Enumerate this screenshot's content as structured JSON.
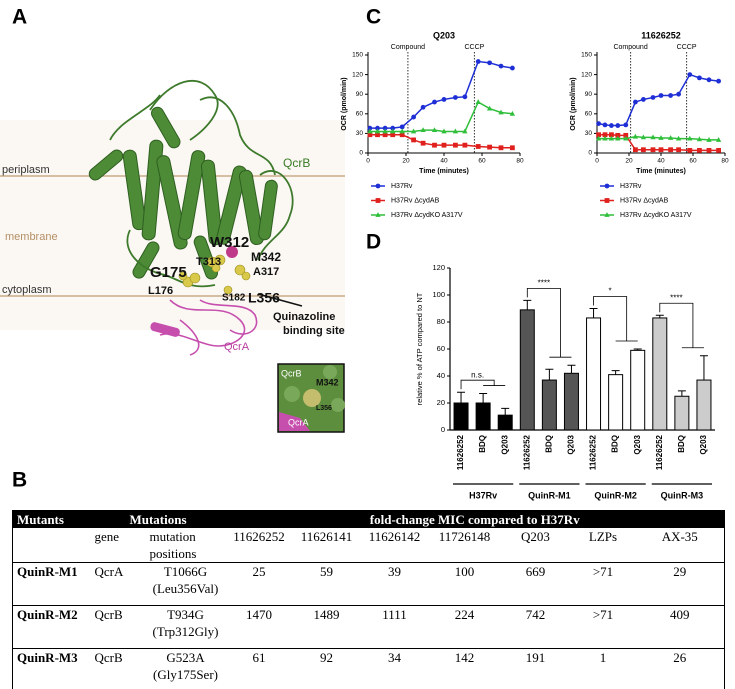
{
  "panel_labels": [
    "A",
    "B",
    "C",
    "D"
  ],
  "structure": {
    "regions": [
      "periplasm",
      "membrane",
      "cytoplasm"
    ],
    "chains": [
      "QcrB",
      "QcrA"
    ],
    "residues": [
      "W312",
      "M342",
      "T313",
      "A317",
      "G175",
      "L176",
      "S182",
      "L356"
    ],
    "site_label": [
      "Quinazoline",
      "binding site"
    ],
    "inset_labels": [
      "QcrB",
      "M342",
      "L356",
      "QcrA"
    ]
  },
  "table": {
    "headers": [
      "Mutants",
      "Mutations",
      "fold-change MIC compared to H37Rv"
    ],
    "subheaders": [
      "gene",
      "mutation positions",
      "11626252",
      "11626141",
      "11626142",
      "11726148",
      "Q203",
      "LZPs",
      "AX-35"
    ],
    "rows": [
      [
        "QuinR-M1",
        "QcrA",
        [
          "T1066G",
          "(Leu356Val)"
        ],
        25,
        59,
        39,
        100,
        669,
        ">71",
        29
      ],
      [
        "QuinR-M2",
        "QcrB",
        [
          "T934G",
          "(Trp312Gly)"
        ],
        1470,
        1489,
        1111,
        224,
        742,
        ">71",
        409
      ],
      [
        "QuinR-M3",
        "QcrB",
        [
          "G523A",
          "(Gly175Ser)"
        ],
        61,
        92,
        34,
        142,
        191,
        1,
        26
      ]
    ]
  },
  "chart_data": [
    {
      "type": "line",
      "title": "Q203",
      "x_label": "Time (minutes)",
      "y_label": "OCR (pmol/min)",
      "x": [
        1,
        5,
        9,
        13,
        18,
        24,
        29,
        35,
        40,
        46,
        51,
        58,
        64,
        70,
        76
      ],
      "xlim": [
        0,
        80
      ],
      "xticks": [
        0,
        20,
        40,
        60,
        80
      ],
      "ylim": [
        0,
        150
      ],
      "yticks": [
        0,
        30,
        60,
        90,
        120,
        150
      ],
      "annotations": [
        {
          "text": "Compound",
          "x": 21
        },
        {
          "text": "CCCP",
          "x": 56
        }
      ],
      "series": [
        {
          "name": "H37Rv",
          "color": "#1f2fd6",
          "marker": "circle",
          "values": [
            38,
            38,
            38,
            38,
            40,
            55,
            70,
            78,
            82,
            85,
            86,
            140,
            138,
            133,
            130
          ]
        },
        {
          "name": "H37Rv ΔcydAB",
          "color": "#e0201c",
          "marker": "square",
          "values": [
            28,
            28,
            28,
            28,
            28,
            20,
            15,
            12,
            12,
            12,
            12,
            10,
            9,
            8,
            8
          ]
        },
        {
          "name": "H37Rv ΔcydKO A317V",
          "color": "#2fbf3a",
          "marker": "triangle",
          "values": [
            33,
            33,
            33,
            33,
            33,
            33,
            35,
            35,
            33,
            33,
            33,
            78,
            68,
            62,
            60
          ]
        }
      ]
    },
    {
      "type": "line",
      "title": "11626252",
      "x_label": "Time (minutes)",
      "y_label": "OCR (pmol/min)",
      "x": [
        1,
        5,
        9,
        13,
        18,
        24,
        29,
        35,
        40,
        46,
        51,
        58,
        64,
        70,
        76
      ],
      "xlim": [
        0,
        80
      ],
      "xticks": [
        0,
        20,
        40,
        60,
        80
      ],
      "ylim": [
        0,
        150
      ],
      "yticks": [
        0,
        30,
        60,
        90,
        120,
        150
      ],
      "annotations": [
        {
          "text": "Compound",
          "x": 21
        },
        {
          "text": "CCCP",
          "x": 56
        }
      ],
      "series": [
        {
          "name": "H37Rv",
          "color": "#1f2fd6",
          "marker": "circle",
          "values": [
            45,
            43,
            42,
            42,
            43,
            78,
            82,
            85,
            88,
            88,
            90,
            120,
            115,
            112,
            110
          ]
        },
        {
          "name": "H37Rv ΔcydAB",
          "color": "#e0201c",
          "marker": "square",
          "values": [
            28,
            28,
            28,
            27,
            27,
            5,
            5,
            5,
            5,
            5,
            5,
            4,
            4,
            4,
            4
          ]
        },
        {
          "name": "H37Rv ΔcydKO A317V",
          "color": "#2fbf3a",
          "marker": "triangle",
          "values": [
            22,
            22,
            22,
            22,
            22,
            25,
            24,
            24,
            23,
            23,
            22,
            22,
            21,
            20,
            20
          ]
        }
      ]
    },
    {
      "type": "bar",
      "y_label": "relative % of ATP compared to NT",
      "categories": [
        "11626252",
        "BDQ",
        "Q203",
        "11626252",
        "BDQ",
        "Q203",
        "11626252",
        "BDQ",
        "Q203",
        "11626252",
        "BDQ",
        "Q203"
      ],
      "groups": [
        "H37Rv",
        "QuinR-M1",
        "QuinR-M2",
        "QuinR-M3"
      ],
      "colors": [
        "#000000",
        "#555555",
        "#ffffff",
        "#cccccc"
      ],
      "values": [
        20,
        20,
        11,
        89,
        37,
        42,
        83,
        41,
        59,
        83,
        25,
        37
      ],
      "errors": [
        8,
        7,
        5,
        7,
        8,
        6,
        7,
        3,
        1,
        2,
        4,
        18
      ],
      "significance": [
        "n.s.",
        "****",
        "*",
        "****"
      ],
      "ylim": [
        0,
        120
      ],
      "yticks": [
        0,
        20,
        40,
        60,
        80,
        100,
        120
      ]
    }
  ]
}
